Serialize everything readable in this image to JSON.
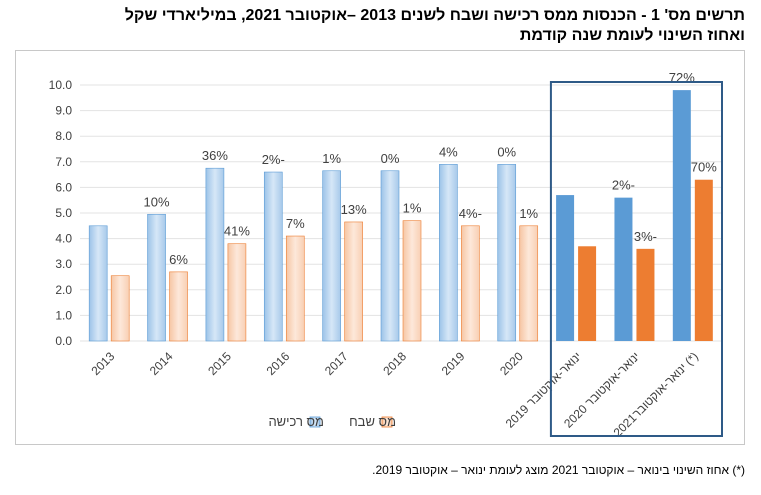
{
  "title_line1": "תרשים מס' 1 - הכנסות ממס רכישה ושבח לשנים 2013 –אוקטובר 2021, במיליארדי שקל",
  "title_line2": "ואחוז השינוי לעומת שנה קודמת",
  "footnote": "(*) אחוז השינוי בינואר – אוקטובר 2021 מוצג לעומת ינואר – אוקטובר 2019.",
  "colors": {
    "purchase_tax": "#5b9bd5",
    "betterment_tax": "#ed7d31",
    "highlight_box": "#2e5a87"
  },
  "chart_data": {
    "type": "bar",
    "ylim": [
      0,
      10
    ],
    "yticks": [
      "0.0",
      "1.0",
      "2.0",
      "3.0",
      "4.0",
      "5.0",
      "6.0",
      "7.0",
      "8.0",
      "9.0",
      "10.0"
    ],
    "categories": [
      "2013",
      "2014",
      "2015",
      "2016",
      "2017",
      "2018",
      "2019",
      "2020",
      "ינואר-אוקטובר 2019",
      "ינואר-אוקטובר 2020",
      "ינואר-אוקטובר2021 (*)"
    ],
    "series": [
      {
        "name": "מס רכישה",
        "values": [
          4.5,
          4.95,
          6.75,
          6.6,
          6.65,
          6.65,
          6.9,
          6.9,
          5.7,
          5.6,
          9.8
        ],
        "labels": [
          "",
          "10%",
          "36%",
          "2%-",
          "1%",
          "0%",
          "4%",
          "0%",
          "",
          "2%-",
          "72%"
        ]
      },
      {
        "name": "מס שבח",
        "values": [
          2.55,
          2.7,
          3.8,
          4.1,
          4.65,
          4.7,
          4.5,
          4.5,
          3.7,
          3.6,
          6.3
        ],
        "labels": [
          "",
          "6%",
          "41%",
          "7%",
          "13%",
          "1%",
          "4%-",
          "1%",
          "",
          "3%-",
          "70%"
        ]
      }
    ],
    "highlight_categories": [
      8,
      9,
      10
    ],
    "legend_position": "bottom"
  }
}
